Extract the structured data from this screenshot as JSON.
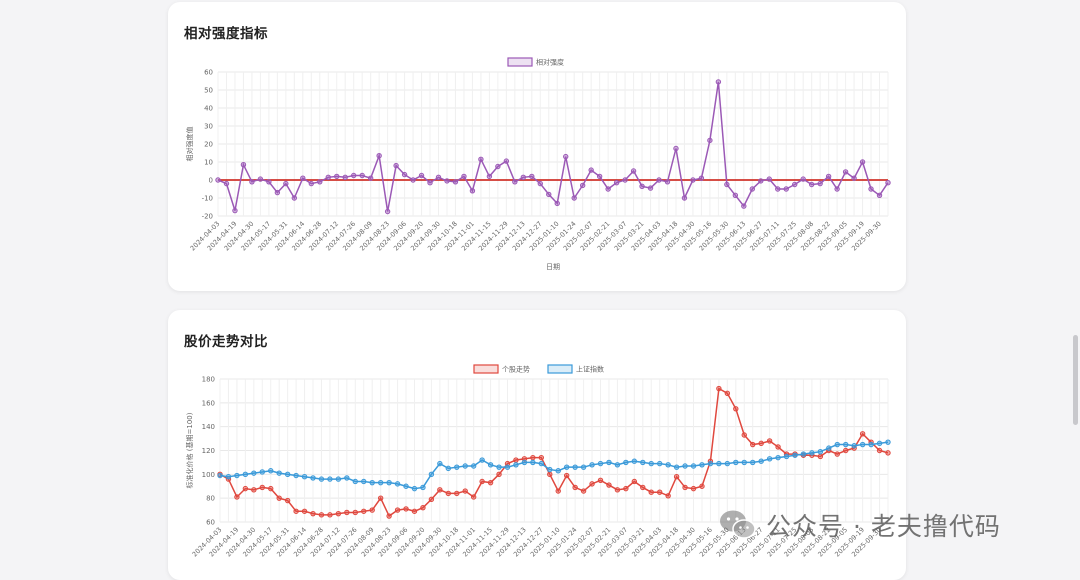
{
  "cards": [
    {
      "title": "相对强度指标"
    },
    {
      "title": "股价走势对比"
    }
  ],
  "watermark": {
    "text": "公众号 · 老夫撸代码",
    "icon": "wechat-icon"
  },
  "dates": [
    "2024-04-03",
    "2024-04-19",
    "2024-04-30",
    "2024-05-17",
    "2024-05-31",
    "2024-06-14",
    "2024-06-28",
    "2024-07-12",
    "2024-07-26",
    "2024-08-09",
    "2024-08-23",
    "2024-09-06",
    "2024-09-20",
    "2024-09-30",
    "2024-10-18",
    "2024-11-01",
    "2024-11-15",
    "2024-11-29",
    "2024-12-13",
    "2024-12-27",
    "2025-01-10",
    "2025-01-24",
    "2025-02-07",
    "2025-02-21",
    "2025-03-07",
    "2025-03-21",
    "2025-04-03",
    "2025-04-18",
    "2025-04-30",
    "2025-05-16",
    "2025-05-30",
    "2025-06-13",
    "2025-06-27",
    "2025-07-11",
    "2025-07-25",
    "2025-08-08",
    "2025-08-22",
    "2025-09-05",
    "2025-09-19",
    "2025-09-30"
  ],
  "chart_data": [
    {
      "type": "line",
      "title": "相对强度指标",
      "xlabel": "日期",
      "ylabel": "相对强度值",
      "ylim": [
        -20,
        60
      ],
      "yticks": [
        -20,
        -10,
        0,
        10,
        20,
        30,
        40,
        50,
        60
      ],
      "grid": true,
      "legend_position": "top",
      "reference_line": {
        "value": 0,
        "color": "#d0342c"
      },
      "series": [
        {
          "name": "相对强度",
          "color": "#9b59b6",
          "values": [
            0,
            -2,
            -17,
            8.5,
            -1,
            0.5,
            -1,
            -7,
            -2,
            -10,
            1,
            -2,
            -1,
            1.5,
            2,
            1.5,
            2.5,
            2.5,
            1,
            13.5,
            -17.5,
            8,
            3,
            0,
            2.5,
            -1.5,
            1.5,
            -0.5,
            -1,
            2,
            -6,
            11.5,
            2,
            7.5,
            10.5,
            -1,
            1.5,
            2,
            -2,
            -8,
            -13,
            13,
            -10,
            -3,
            5.5,
            2,
            -5,
            -1.5,
            0,
            5,
            -3.5,
            -4.5,
            0,
            -1,
            17.5,
            -10,
            0,
            1,
            22,
            54.5,
            -2.5,
            -8.5,
            -14.5,
            -5,
            -0.5,
            0.5,
            -5,
            -5,
            -2.5,
            0.5,
            -2.5,
            -2,
            2,
            -5,
            4.5,
            1,
            10,
            -5,
            -8.5,
            -1.5
          ]
        }
      ]
    },
    {
      "type": "line",
      "title": "股价走势对比",
      "xlabel": "",
      "ylabel": "标准化价格 (基期=100)",
      "ylim": [
        60,
        180
      ],
      "yticks": [
        60,
        80,
        100,
        120,
        140,
        160,
        180
      ],
      "grid": true,
      "legend_position": "top",
      "series": [
        {
          "name": "个股走势",
          "color": "#e0483e",
          "values": [
            100,
            96,
            81,
            88,
            87,
            89,
            88,
            80,
            78,
            69,
            69,
            67,
            66,
            66,
            67,
            68,
            68,
            69,
            70,
            80,
            65,
            70,
            71,
            69,
            72,
            79,
            87,
            84,
            84,
            86,
            81,
            94,
            93,
            100,
            109,
            112,
            113,
            114,
            114,
            100,
            86,
            99,
            89,
            86,
            92,
            95,
            91,
            87,
            88,
            94,
            89,
            85,
            85,
            82,
            98,
            89,
            88,
            90,
            111,
            172,
            168,
            155,
            133,
            125,
            126,
            128,
            123,
            117,
            117,
            116,
            116,
            115,
            120,
            117,
            120,
            122,
            134,
            127,
            120,
            118
          ]
        },
        {
          "name": "上证指数",
          "color": "#3a9ad9",
          "values": [
            99,
            98,
            99,
            100,
            101,
            102,
            103,
            101,
            100,
            99,
            98,
            97,
            96,
            96,
            96,
            97,
            94,
            94,
            93,
            93,
            93,
            92,
            90,
            88,
            89,
            100,
            109,
            105,
            106,
            107,
            107,
            112,
            108,
            106,
            106,
            108,
            110,
            110,
            109,
            104,
            103,
            106,
            106,
            106,
            108,
            109,
            110,
            108,
            110,
            111,
            110,
            109,
            109,
            108,
            106,
            107,
            107,
            108,
            109,
            109,
            109,
            110,
            110,
            110,
            111,
            113,
            114,
            115,
            116,
            117,
            118,
            119,
            122,
            125,
            125,
            124,
            125,
            125,
            126,
            127
          ]
        }
      ]
    }
  ]
}
